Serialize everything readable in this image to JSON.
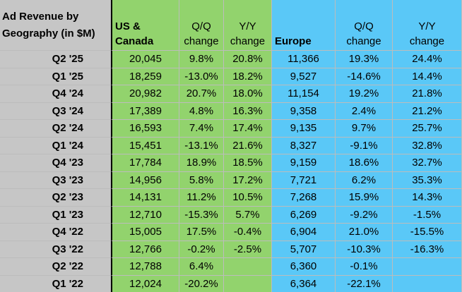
{
  "headers": {
    "label": [
      "Ad Revenue by",
      "Geography (in $M)"
    ],
    "us": [
      "US &",
      "Canada"
    ],
    "us_qq": [
      "Q/Q",
      "change"
    ],
    "us_yy": [
      "Y/Y",
      "change"
    ],
    "europe": "Europe",
    "eu_qq": [
      "Q/Q",
      "change"
    ],
    "eu_yy": [
      "Y/Y",
      "change"
    ]
  },
  "rows": [
    {
      "quarter": "Q2 '25",
      "us": "20,045",
      "us_qq": "9.8%",
      "us_yy": "20.8%",
      "eu": "11,366",
      "eu_qq": "19.3%",
      "eu_yy": "24.4%"
    },
    {
      "quarter": "Q1 '25",
      "us": "18,259",
      "us_qq": "-13.0%",
      "us_yy": "18.2%",
      "eu": "9,527",
      "eu_qq": "-14.6%",
      "eu_yy": "14.4%"
    },
    {
      "quarter": "Q4 '24",
      "us": "20,982",
      "us_qq": "20.7%",
      "us_yy": "18.0%",
      "eu": "11,154",
      "eu_qq": "19.2%",
      "eu_yy": "21.8%"
    },
    {
      "quarter": "Q3 '24",
      "us": "17,389",
      "us_qq": "4.8%",
      "us_yy": "16.3%",
      "eu": "9,358",
      "eu_qq": "2.4%",
      "eu_yy": "21.2%"
    },
    {
      "quarter": "Q2 '24",
      "us": "16,593",
      "us_qq": "7.4%",
      "us_yy": "17.4%",
      "eu": "9,135",
      "eu_qq": "9.7%",
      "eu_yy": "25.7%"
    },
    {
      "quarter": "Q1 '24",
      "us": "15,451",
      "us_qq": "-13.1%",
      "us_yy": "21.6%",
      "eu": "8,327",
      "eu_qq": "-9.1%",
      "eu_yy": "32.8%"
    },
    {
      "quarter": "Q4 '23",
      "us": "17,784",
      "us_qq": "18.9%",
      "us_yy": "18.5%",
      "eu": "9,159",
      "eu_qq": "18.6%",
      "eu_yy": "32.7%"
    },
    {
      "quarter": "Q3 '23",
      "us": "14,956",
      "us_qq": "5.8%",
      "us_yy": "17.2%",
      "eu": "7,721",
      "eu_qq": "6.2%",
      "eu_yy": "35.3%"
    },
    {
      "quarter": "Q2 '23",
      "us": "14,131",
      "us_qq": "11.2%",
      "us_yy": "10.5%",
      "eu": "7,268",
      "eu_qq": "15.9%",
      "eu_yy": "14.3%"
    },
    {
      "quarter": "Q1 '23",
      "us": "12,710",
      "us_qq": "-15.3%",
      "us_yy": "5.7%",
      "eu": "6,269",
      "eu_qq": "-9.2%",
      "eu_yy": "-1.5%"
    },
    {
      "quarter": "Q4 '22",
      "us": "15,005",
      "us_qq": "17.5%",
      "us_yy": "-0.4%",
      "eu": "6,904",
      "eu_qq": "21.0%",
      "eu_yy": "-15.5%"
    },
    {
      "quarter": "Q3 '22",
      "us": "12,766",
      "us_qq": "-0.2%",
      "us_yy": "-2.5%",
      "eu": "5,707",
      "eu_qq": "-10.3%",
      "eu_yy": "-16.3%"
    },
    {
      "quarter": "Q2 '22",
      "us": "12,788",
      "us_qq": "6.4%",
      "us_yy": "",
      "eu": "6,360",
      "eu_qq": "-0.1%",
      "eu_yy": ""
    },
    {
      "quarter": "Q1 '22",
      "us": "12,024",
      "us_qq": "-20.2%",
      "us_yy": "",
      "eu": "6,364",
      "eu_qq": "-22.1%",
      "eu_yy": ""
    }
  ],
  "colors": {
    "label_fill": "#c6c6c6",
    "us_fill": "#92d36d",
    "europe_fill": "#5ac8f7"
  }
}
